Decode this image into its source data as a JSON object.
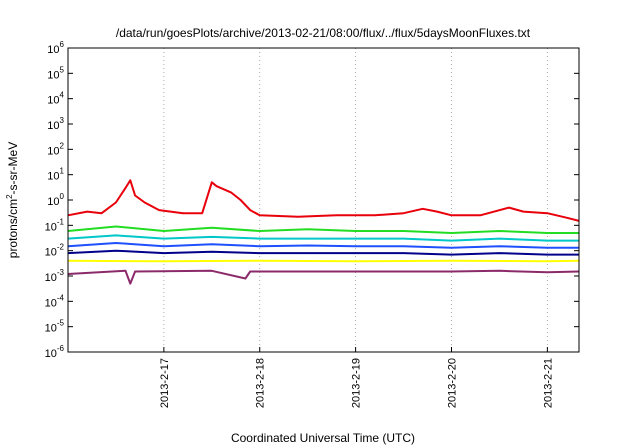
{
  "chart_data": {
    "type": "line",
    "title": "/data/run/goesPlots/archive/2013-02-21/08:00/flux/../flux/5daysMoonFluxes.txt",
    "xlabel": "Coordinated Universal Time (UTC)",
    "ylabel_base": "protons/cm",
    "ylabel_sup": "2",
    "ylabel_rest": "-s-sr-MeV",
    "yscale": "log",
    "ylim_exp": [
      -6,
      6
    ],
    "y_ticks": [
      {
        "base": "10",
        "exp": "-6",
        "value": -6
      },
      {
        "base": "10",
        "exp": "-5",
        "value": -5
      },
      {
        "base": "10",
        "exp": "-4",
        "value": -4
      },
      {
        "base": "10",
        "exp": "-3",
        "value": -3
      },
      {
        "base": "10",
        "exp": "-2",
        "value": -2
      },
      {
        "base": "10",
        "exp": "-1",
        "value": -1
      },
      {
        "base": "10",
        "exp": "0",
        "value": 0
      },
      {
        "base": "10",
        "exp": "1",
        "value": 1
      },
      {
        "base": "10",
        "exp": "2",
        "value": 2
      },
      {
        "base": "10",
        "exp": "3",
        "value": 3
      },
      {
        "base": "10",
        "exp": "4",
        "value": 4
      },
      {
        "base": "10",
        "exp": "5",
        "value": 5
      },
      {
        "base": "10",
        "exp": "6",
        "value": 6
      }
    ],
    "xlim_days": [
      16.0,
      21.33
    ],
    "x_ticks": [
      {
        "label": "2013-2-17",
        "day": 17
      },
      {
        "label": "2013-2-18",
        "day": 18
      },
      {
        "label": "2013-2-19",
        "day": 19
      },
      {
        "label": "2013-2-20",
        "day": 20
      },
      {
        "label": "2013-2-21",
        "day": 21
      }
    ],
    "grid": true,
    "series": [
      {
        "color": "#e8000b",
        "values": [
          [
            16.0,
            0.25
          ],
          [
            16.2,
            0.35
          ],
          [
            16.35,
            0.3
          ],
          [
            16.5,
            0.8
          ],
          [
            16.6,
            3.0
          ],
          [
            16.65,
            6.0
          ],
          [
            16.7,
            1.5
          ],
          [
            16.8,
            0.8
          ],
          [
            16.95,
            0.4
          ],
          [
            17.2,
            0.3
          ],
          [
            17.4,
            0.3
          ],
          [
            17.5,
            5.0
          ],
          [
            17.55,
            3.5
          ],
          [
            17.7,
            2.0
          ],
          [
            17.8,
            1.0
          ],
          [
            17.9,
            0.4
          ],
          [
            18.0,
            0.25
          ],
          [
            18.4,
            0.22
          ],
          [
            18.8,
            0.25
          ],
          [
            19.2,
            0.25
          ],
          [
            19.5,
            0.3
          ],
          [
            19.7,
            0.45
          ],
          [
            19.85,
            0.35
          ],
          [
            20.0,
            0.25
          ],
          [
            20.3,
            0.25
          ],
          [
            20.6,
            0.5
          ],
          [
            20.75,
            0.35
          ],
          [
            21.0,
            0.3
          ],
          [
            21.2,
            0.2
          ],
          [
            21.33,
            0.15
          ]
        ]
      },
      {
        "color": "#22dd22",
        "values": [
          [
            16.0,
            0.06
          ],
          [
            16.5,
            0.09
          ],
          [
            17.0,
            0.06
          ],
          [
            17.5,
            0.08
          ],
          [
            18.0,
            0.06
          ],
          [
            18.5,
            0.07
          ],
          [
            19.0,
            0.06
          ],
          [
            19.5,
            0.06
          ],
          [
            20.0,
            0.05
          ],
          [
            20.5,
            0.06
          ],
          [
            21.0,
            0.05
          ],
          [
            21.33,
            0.05
          ]
        ]
      },
      {
        "color": "#00c8c8",
        "values": [
          [
            16.0,
            0.03
          ],
          [
            16.5,
            0.04
          ],
          [
            17.0,
            0.03
          ],
          [
            17.5,
            0.035
          ],
          [
            18.0,
            0.03
          ],
          [
            18.5,
            0.03
          ],
          [
            19.0,
            0.03
          ],
          [
            19.5,
            0.03
          ],
          [
            20.0,
            0.025
          ],
          [
            20.5,
            0.03
          ],
          [
            21.0,
            0.025
          ],
          [
            21.33,
            0.025
          ]
        ]
      },
      {
        "color": "#1e50ff",
        "values": [
          [
            16.0,
            0.015
          ],
          [
            16.5,
            0.02
          ],
          [
            17.0,
            0.015
          ],
          [
            17.5,
            0.018
          ],
          [
            18.0,
            0.015
          ],
          [
            18.5,
            0.016
          ],
          [
            19.0,
            0.015
          ],
          [
            19.5,
            0.015
          ],
          [
            20.0,
            0.013
          ],
          [
            20.5,
            0.015
          ],
          [
            21.0,
            0.013
          ],
          [
            21.33,
            0.013
          ]
        ]
      },
      {
        "color": "#00008b",
        "values": [
          [
            16.0,
            0.008
          ],
          [
            16.5,
            0.01
          ],
          [
            17.0,
            0.008
          ],
          [
            17.5,
            0.009
          ],
          [
            18.0,
            0.008
          ],
          [
            18.5,
            0.008
          ],
          [
            19.0,
            0.008
          ],
          [
            19.5,
            0.008
          ],
          [
            20.0,
            0.007
          ],
          [
            20.5,
            0.008
          ],
          [
            21.0,
            0.007
          ],
          [
            21.33,
            0.007
          ]
        ]
      },
      {
        "color": "#ffff00",
        "values": [
          [
            16.0,
            0.004
          ],
          [
            17.0,
            0.0038
          ],
          [
            18.0,
            0.004
          ],
          [
            19.0,
            0.0038
          ],
          [
            20.0,
            0.004
          ],
          [
            21.0,
            0.0038
          ],
          [
            21.33,
            0.004
          ]
        ]
      },
      {
        "color": "#8b2a6a",
        "values": [
          [
            16.0,
            0.0012
          ],
          [
            16.6,
            0.0016
          ],
          [
            16.65,
            0.0005
          ],
          [
            16.7,
            0.0015
          ],
          [
            17.5,
            0.0016
          ],
          [
            17.85,
            0.0008
          ],
          [
            17.9,
            0.0015
          ],
          [
            18.5,
            0.0015
          ],
          [
            19.0,
            0.0015
          ],
          [
            19.5,
            0.0015
          ],
          [
            20.0,
            0.0015
          ],
          [
            20.5,
            0.0016
          ],
          [
            21.0,
            0.0014
          ],
          [
            21.33,
            0.0015
          ]
        ]
      }
    ]
  }
}
